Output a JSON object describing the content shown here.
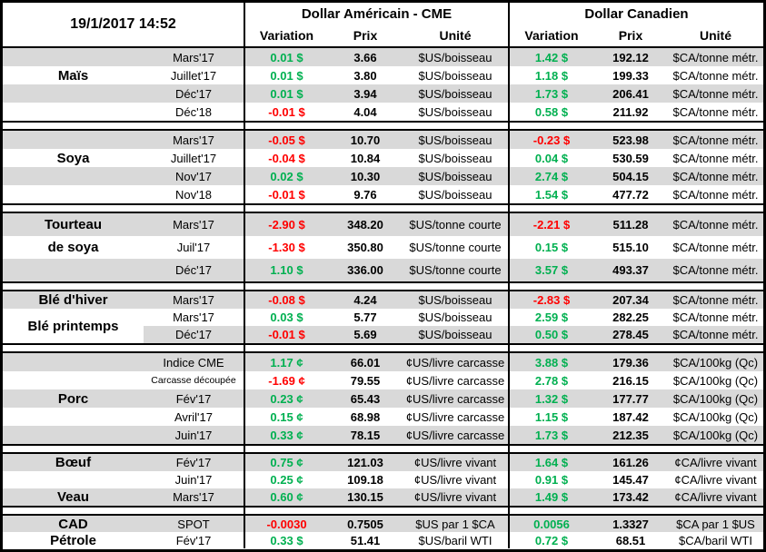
{
  "colors": {
    "positive": "#00B050",
    "negative": "#FF0000",
    "row_shade": "#D9D9D9",
    "border": "#000000"
  },
  "header": {
    "datetime": "19/1/2017 14:52",
    "group_us": "Dollar Américain - CME",
    "group_ca": "Dollar Canadien",
    "columns": {
      "variation": "Variation",
      "prix": "Prix",
      "unite": "Unité"
    }
  },
  "sections": [
    {
      "id": "mais",
      "rows": [
        {
          "label": "",
          "item": "Mars'17",
          "vus": "0.01 $",
          "pus": "3.66",
          "uus": "$US/boisseau",
          "vca": "1.42 $",
          "pca": "192.12",
          "uca": "$CA/tonne métr.",
          "bg": "g"
        },
        {
          "label": "Maïs",
          "item": "Juillet'17",
          "vus": "0.01 $",
          "pus": "3.80",
          "uus": "$US/boisseau",
          "vca": "1.18 $",
          "pca": "199.33",
          "uca": "$CA/tonne métr.",
          "bg": "w"
        },
        {
          "label": "",
          "item": "Déc'17",
          "vus": "0.01 $",
          "pus": "3.94",
          "uus": "$US/boisseau",
          "vca": "1.73 $",
          "pca": "206.41",
          "uca": "$CA/tonne métr.",
          "bg": "g"
        },
        {
          "label": "",
          "item": "Déc'18",
          "vus": "-0.01 $",
          "pus": "4.04",
          "uus": "$US/boisseau",
          "vca": "0.58 $",
          "pca": "211.92",
          "uca": "$CA/tonne métr.",
          "bg": "w"
        }
      ]
    },
    {
      "id": "soya",
      "rows": [
        {
          "label": "",
          "item": "Mars'17",
          "vus": "-0.05 $",
          "pus": "10.70",
          "uus": "$US/boisseau",
          "vca": "-0.23 $",
          "pca": "523.98",
          "uca": "$CA/tonne métr.",
          "bg": "g"
        },
        {
          "label": "Soya",
          "item": "Juillet'17",
          "vus": "-0.04 $",
          "pus": "10.84",
          "uus": "$US/boisseau",
          "vca": "0.04 $",
          "pca": "530.59",
          "uca": "$CA/tonne métr.",
          "bg": "w"
        },
        {
          "label": "",
          "item": "Nov'17",
          "vus": "0.02 $",
          "pus": "10.30",
          "uus": "$US/boisseau",
          "vca": "2.74 $",
          "pca": "504.15",
          "uca": "$CA/tonne métr.",
          "bg": "g"
        },
        {
          "label": "",
          "item": "Nov'18",
          "vus": "-0.01 $",
          "pus": "9.76",
          "uus": "$US/boisseau",
          "vca": "1.54 $",
          "pca": "477.72",
          "uca": "$CA/tonne métr.",
          "bg": "w"
        }
      ]
    },
    {
      "id": "tourteau",
      "rows": [
        {
          "label": "Tourteau",
          "item": "Mars'17",
          "vus": "-2.90 $",
          "pus": "348.20",
          "uus": "$US/tonne courte",
          "vca": "-2.21 $",
          "pca": "511.28",
          "uca": "$CA/tonne métr.",
          "bg": "g"
        },
        {
          "label": "de soya",
          "item": "Juil'17",
          "vus": "-1.30 $",
          "pus": "350.80",
          "uus": "$US/tonne courte",
          "vca": "0.15 $",
          "pca": "515.10",
          "uca": "$CA/tonne métr.",
          "bg": "w"
        },
        {
          "label": "",
          "item": "Déc'17",
          "vus": "1.10 $",
          "pus": "336.00",
          "uus": "$US/tonne courte",
          "vca": "3.57 $",
          "pca": "493.37",
          "uca": "$CA/tonne métr.",
          "bg": "g"
        }
      ]
    },
    {
      "id": "ble",
      "rows": [
        {
          "label": "Blé d'hiver",
          "item": "Mars'17",
          "vus": "-0.08 $",
          "pus": "4.24",
          "uus": "$US/boisseau",
          "vca": "-2.83 $",
          "pca": "207.34",
          "uca": "$CA/tonne métr.",
          "bg": "g"
        },
        {
          "label": "Blé printemps",
          "label_span": 2,
          "label_bg": "w",
          "item": "Mars'17",
          "vus": "0.03 $",
          "pus": "5.77",
          "uus": "$US/boisseau",
          "vca": "2.59 $",
          "pca": "282.25",
          "uca": "$CA/tonne métr.",
          "bg": "w"
        },
        {
          "skip_label": true,
          "item": "Déc'17",
          "vus": "-0.01 $",
          "pus": "5.69",
          "uus": "$US/boisseau",
          "vca": "0.50 $",
          "pca": "278.45",
          "uca": "$CA/tonne métr.",
          "bg": "g"
        }
      ]
    },
    {
      "id": "porc",
      "rows": [
        {
          "label": "",
          "item": "Indice CME",
          "vus": "1.17 ¢",
          "pus": "66.01",
          "uus": "¢US/livre carcasse",
          "vca": "3.88 $",
          "pca": "179.36",
          "uca": "$CA/100kg (Qc)",
          "bg": "g"
        },
        {
          "label": "",
          "item": "Carcasse découpée",
          "small": true,
          "vus": "-1.69 ¢",
          "pus": "79.55",
          "uus": "¢US/livre carcasse",
          "vca": "2.78 $",
          "pca": "216.15",
          "uca": "$CA/100kg (Qc)",
          "bg": "w"
        },
        {
          "label": "Porc",
          "item": "Fév'17",
          "vus": "0.23 ¢",
          "pus": "65.43",
          "uus": "¢US/livre carcasse",
          "vca": "1.32 $",
          "pca": "177.77",
          "uca": "$CA/100kg (Qc)",
          "bg": "g"
        },
        {
          "label": "",
          "item": "Avril'17",
          "vus": "0.15 ¢",
          "pus": "68.98",
          "uus": "¢US/livre carcasse",
          "vca": "1.15 $",
          "pca": "187.42",
          "uca": "$CA/100kg (Qc)",
          "bg": "w"
        },
        {
          "label": "",
          "item": "Juin'17",
          "vus": "0.33 ¢",
          "pus": "78.15",
          "uus": "¢US/livre carcasse",
          "vca": "1.73 $",
          "pca": "212.35",
          "uca": "$CA/100kg (Qc)",
          "bg": "g"
        }
      ]
    },
    {
      "id": "boeuf",
      "rows": [
        {
          "label": "Bœuf",
          "item": "Fév'17",
          "vus": "0.75 ¢",
          "pus": "121.03",
          "uus": "¢US/livre vivant",
          "vca": "1.64 $",
          "pca": "161.26",
          "uca": "¢CA/livre vivant",
          "bg": "g"
        },
        {
          "label": "",
          "item": "Juin'17",
          "vus": "0.25 ¢",
          "pus": "109.18",
          "uus": "¢US/livre vivant",
          "vca": "0.91 $",
          "pca": "145.47",
          "uca": "¢CA/livre vivant",
          "bg": "w"
        },
        {
          "label": "Veau",
          "item": "Mars'17",
          "vus": "0.60 ¢",
          "pus": "130.15",
          "uus": "¢US/livre vivant",
          "vca": "1.49 $",
          "pca": "173.42",
          "uca": "¢CA/livre vivant",
          "bg": "g"
        }
      ]
    },
    {
      "id": "cad",
      "rows": [
        {
          "label": "CAD",
          "item": "SPOT",
          "vus": "-0.0030",
          "pus": "0.7505",
          "uus": "$US par 1 $CA",
          "vca": "0.0056",
          "pca": "1.3327",
          "uca": "$CA par 1 $US",
          "bg": "g"
        },
        {
          "label": "Pétrole",
          "item": "Fév'17",
          "vus": "0.33 $",
          "pus": "51.41",
          "uus": "$US/baril WTI",
          "vca": "0.72 $",
          "pca": "68.51",
          "uca": "$CA/baril WTI",
          "bg": "w"
        }
      ]
    }
  ]
}
